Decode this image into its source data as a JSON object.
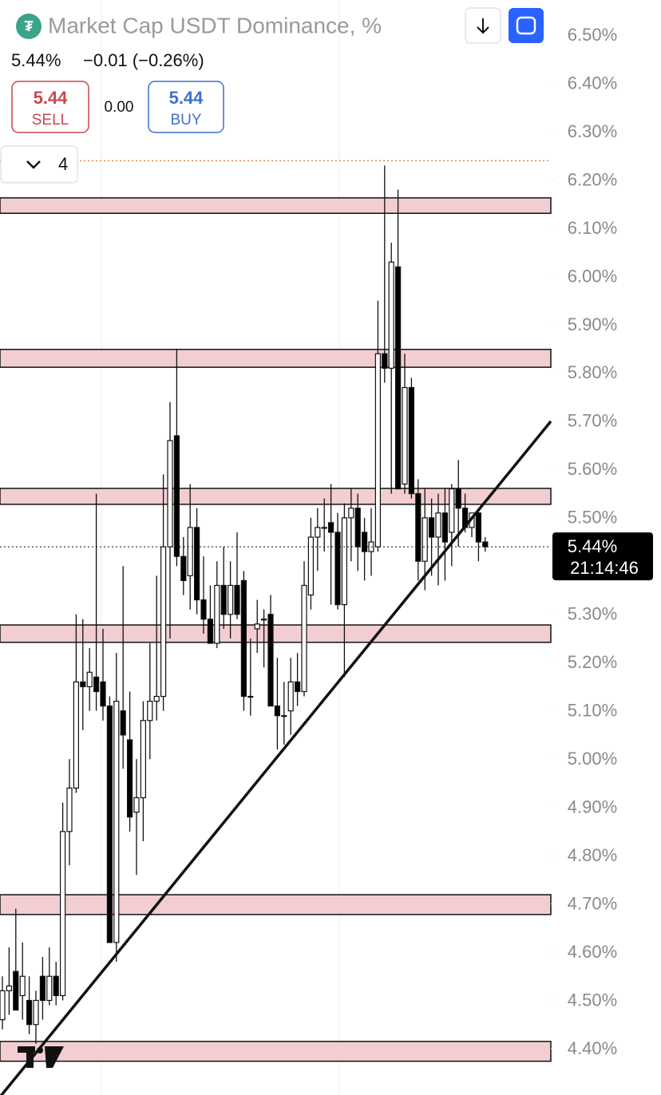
{
  "header": {
    "title": "Market Cap USDT Dominance, %",
    "last": "5.44%",
    "change": "−0.01 (−0.26%)",
    "sell_price": "5.44",
    "sell_label": "SELL",
    "spread": "0.00",
    "buy_price": "5.44",
    "buy_label": "BUY",
    "interval_count": "4"
  },
  "chart_data": {
    "type": "candlestick",
    "ylim": [
      4.304,
      6.573
    ],
    "yticks": [
      {
        "value": 6.5,
        "label": "6.50%"
      },
      {
        "value": 6.4,
        "label": "6.40%"
      },
      {
        "value": 6.3,
        "label": "6.30%"
      },
      {
        "value": 6.2,
        "label": "6.20%"
      },
      {
        "value": 6.1,
        "label": "6.10%"
      },
      {
        "value": 6.0,
        "label": "6.00%"
      },
      {
        "value": 5.9,
        "label": "5.90%"
      },
      {
        "value": 5.8,
        "label": "5.80%"
      },
      {
        "value": 5.7,
        "label": "5.70%"
      },
      {
        "value": 5.6,
        "label": "5.60%"
      },
      {
        "value": 5.5,
        "label": "5.50%"
      },
      {
        "value": 5.3,
        "label": "5.30%"
      },
      {
        "value": 5.2,
        "label": "5.20%"
      },
      {
        "value": 5.1,
        "label": "5.10%"
      },
      {
        "value": 5.0,
        "label": "5.00%"
      },
      {
        "value": 4.9,
        "label": "4.90%"
      },
      {
        "value": 4.8,
        "label": "4.80%"
      },
      {
        "value": 4.7,
        "label": "4.70%"
      },
      {
        "value": 4.6,
        "label": "4.60%"
      },
      {
        "value": 4.5,
        "label": "4.50%"
      },
      {
        "value": 4.4,
        "label": "4.40%"
      }
    ],
    "candles": {
      "open": [
        4.46,
        4.52,
        4.56,
        4.51,
        4.5,
        4.45,
        4.55,
        4.5,
        4.55,
        4.51,
        4.85,
        4.94,
        5.16,
        5.15,
        5.17,
        5.16,
        5.11,
        4.62,
        5.1,
        5.04,
        4.89,
        4.92,
        5.08,
        5.12,
        5.13,
        5.44,
        5.67,
        5.42,
        5.38,
        5.48,
        5.33,
        5.29,
        5.24,
        5.36,
        5.3,
        5.36,
        5.37,
        5.13,
        5.27,
        5.29,
        5.3,
        5.11,
        5.09,
        5.1,
        5.16,
        5.14,
        5.34,
        5.46,
        5.48,
        5.49,
        5.47,
        5.32,
        5.5,
        5.52,
        5.47,
        5.43,
        5.44,
        5.84,
        5.81,
        6.02,
        5.57,
        5.77,
        5.55,
        5.41,
        5.5,
        5.46,
        5.51,
        5.47,
        5.56,
        5.52,
        5.48,
        5.51,
        5.45
      ],
      "high": [
        4.55,
        4.61,
        4.69,
        4.62,
        4.55,
        4.52,
        4.59,
        4.61,
        4.58,
        4.91,
        5.0,
        5.3,
        5.29,
        5.23,
        5.55,
        5.27,
        5.13,
        5.22,
        5.4,
        5.14,
        5.0,
        5.12,
        5.24,
        5.38,
        5.59,
        5.74,
        5.85,
        5.46,
        5.57,
        5.52,
        5.42,
        5.36,
        5.41,
        5.44,
        5.41,
        5.47,
        5.39,
        5.25,
        5.33,
        5.31,
        5.34,
        5.21,
        5.16,
        5.21,
        5.22,
        5.41,
        5.5,
        5.52,
        5.54,
        5.57,
        5.51,
        5.53,
        5.56,
        5.55,
        5.5,
        5.52,
        5.95,
        6.23,
        6.07,
        6.18,
        5.84,
        5.79,
        5.58,
        5.56,
        5.54,
        5.55,
        5.56,
        5.57,
        5.62,
        5.55,
        5.51,
        5.52,
        5.46
      ],
      "low": [
        4.44,
        4.47,
        4.49,
        4.46,
        4.43,
        4.41,
        4.46,
        4.49,
        4.49,
        4.5,
        4.78,
        4.93,
        5.06,
        5.1,
        5.1,
        5.08,
        4.62,
        4.58,
        4.98,
        4.85,
        4.76,
        4.83,
        5.0,
        5.08,
        5.1,
        5.25,
        5.4,
        5.34,
        5.31,
        5.3,
        5.26,
        5.24,
        5.23,
        5.27,
        5.25,
        5.29,
        5.1,
        5.09,
        5.22,
        5.19,
        5.11,
        5.02,
        5.03,
        5.05,
        5.11,
        5.13,
        5.31,
        5.39,
        5.43,
        5.32,
        5.31,
        5.17,
        5.41,
        5.39,
        5.37,
        5.38,
        5.43,
        5.78,
        5.55,
        5.57,
        5.55,
        5.54,
        5.37,
        5.35,
        5.38,
        5.36,
        5.37,
        5.4,
        5.44,
        5.47,
        5.46,
        5.41,
        5.43
      ],
      "close": [
        4.52,
        4.53,
        4.48,
        4.55,
        4.45,
        4.5,
        4.5,
        4.55,
        4.51,
        4.85,
        4.94,
        5.16,
        5.15,
        5.18,
        5.14,
        5.11,
        4.62,
        5.12,
        5.05,
        4.88,
        4.92,
        5.08,
        5.12,
        5.13,
        5.44,
        5.66,
        5.42,
        5.37,
        5.48,
        5.33,
        5.29,
        5.24,
        5.36,
        5.3,
        5.36,
        5.3,
        5.13,
        5.13,
        5.28,
        5.29,
        5.11,
        5.09,
        5.09,
        5.16,
        5.14,
        5.36,
        5.46,
        5.48,
        5.48,
        5.47,
        5.32,
        5.5,
        5.52,
        5.44,
        5.43,
        5.45,
        5.84,
        5.81,
        6.03,
        5.56,
        5.77,
        5.55,
        5.41,
        5.5,
        5.46,
        5.51,
        5.45,
        5.56,
        5.52,
        5.48,
        5.51,
        5.45,
        5.44
      ]
    },
    "up_color": "#ffffff",
    "down_color": "#000000",
    "zones": [
      {
        "low": 6.131,
        "high": 6.163
      },
      {
        "low": 5.812,
        "high": 5.849
      },
      {
        "low": 5.528,
        "high": 5.561
      },
      {
        "low": 5.242,
        "high": 5.278
      },
      {
        "low": 4.678,
        "high": 4.719
      },
      {
        "low": 4.374,
        "high": 4.415
      }
    ],
    "zone_color": "#f2cdd1",
    "trendline": [
      4.3,
      5.7
    ],
    "high_line": 6.24,
    "last_price": 5.44,
    "last_price_label": "5.44%",
    "countdown": "21:14:46"
  }
}
